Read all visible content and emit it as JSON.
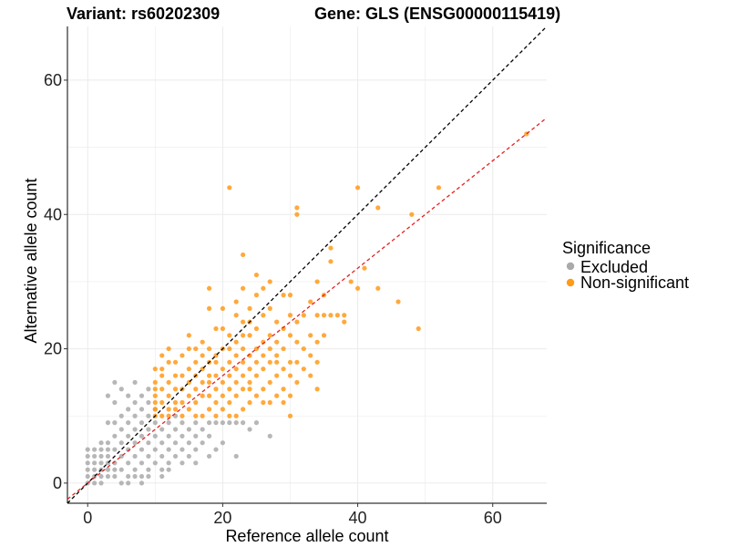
{
  "chart_data": {
    "type": "scatter",
    "title_left": "Variant: rs60202309",
    "title_right": "Gene: GLS (ENSG00000115419)",
    "xlabel": "Reference allele count",
    "ylabel": "Alternative allele count",
    "xlim": [
      -3,
      68
    ],
    "ylim": [
      -3,
      68
    ],
    "xticks": [
      0,
      20,
      40,
      60
    ],
    "yticks": [
      0,
      20,
      40,
      60
    ],
    "grid": true,
    "legend": {
      "title": "Significance",
      "position": "right",
      "entries": [
        {
          "label": "Excluded",
          "color": "#aaaaaa"
        },
        {
          "label": "Non-significant",
          "color": "#ff9a1a"
        }
      ]
    },
    "reference_lines": [
      {
        "name": "identity",
        "slope": 1.0,
        "intercept": 0,
        "color": "#000000",
        "style": "dashed"
      },
      {
        "name": "fit",
        "slope": 0.8,
        "intercept": 0,
        "color": "#e32222",
        "style": "dashed"
      }
    ],
    "series": [
      {
        "name": "Excluded",
        "color": "#aaaaaa",
        "points": [
          [
            0,
            0
          ],
          [
            0,
            1
          ],
          [
            0,
            2
          ],
          [
            0,
            3
          ],
          [
            0,
            5
          ],
          [
            1,
            0
          ],
          [
            1,
            1
          ],
          [
            1,
            2
          ],
          [
            1,
            4
          ],
          [
            1,
            5
          ],
          [
            2,
            0
          ],
          [
            2,
            1
          ],
          [
            2,
            2
          ],
          [
            2,
            3
          ],
          [
            2,
            5
          ],
          [
            2,
            6
          ],
          [
            3,
            1
          ],
          [
            3,
            2
          ],
          [
            3,
            3
          ],
          [
            3,
            4
          ],
          [
            3,
            6
          ],
          [
            3,
            9
          ],
          [
            3,
            13
          ],
          [
            4,
            1
          ],
          [
            4,
            3
          ],
          [
            4,
            5
          ],
          [
            4,
            7
          ],
          [
            4,
            9
          ],
          [
            4,
            12
          ],
          [
            4,
            15
          ],
          [
            5,
            2
          ],
          [
            5,
            4
          ],
          [
            5,
            6
          ],
          [
            5,
            8
          ],
          [
            5,
            10
          ],
          [
            5,
            14
          ],
          [
            6,
            1
          ],
          [
            6,
            3
          ],
          [
            6,
            5
          ],
          [
            6,
            7
          ],
          [
            6,
            9
          ],
          [
            6,
            11
          ],
          [
            6,
            13
          ],
          [
            7,
            2
          ],
          [
            7,
            4
          ],
          [
            7,
            6
          ],
          [
            7,
            8
          ],
          [
            7,
            10
          ],
          [
            7,
            12
          ],
          [
            7,
            15
          ],
          [
            8,
            1
          ],
          [
            8,
            3
          ],
          [
            8,
            5
          ],
          [
            8,
            7
          ],
          [
            8,
            9
          ],
          [
            8,
            11
          ],
          [
            8,
            13
          ],
          [
            9,
            2
          ],
          [
            9,
            4
          ],
          [
            9,
            6
          ],
          [
            9,
            8
          ],
          [
            9,
            10
          ],
          [
            9,
            12
          ],
          [
            9,
            14
          ],
          [
            10,
            3
          ],
          [
            10,
            5
          ],
          [
            10,
            7
          ],
          [
            10,
            9
          ],
          [
            10,
            11
          ],
          [
            11,
            4
          ],
          [
            11,
            6
          ],
          [
            11,
            8
          ],
          [
            11,
            2
          ],
          [
            12,
            5
          ],
          [
            12,
            7
          ],
          [
            12,
            9
          ],
          [
            12,
            3
          ],
          [
            13,
            4
          ],
          [
            13,
            6
          ],
          [
            13,
            8
          ],
          [
            14,
            3
          ],
          [
            14,
            5
          ],
          [
            14,
            7
          ],
          [
            14,
            9
          ],
          [
            15,
            6
          ],
          [
            15,
            8
          ],
          [
            16,
            5
          ],
          [
            16,
            7
          ],
          [
            16,
            9
          ],
          [
            17,
            6
          ],
          [
            17,
            8
          ],
          [
            18,
            9
          ],
          [
            18,
            7
          ],
          [
            19,
            9
          ],
          [
            20,
            9
          ],
          [
            21,
            9
          ],
          [
            22,
            4
          ],
          [
            22,
            9
          ],
          [
            23,
            9
          ],
          [
            24,
            8
          ],
          [
            25,
            9
          ],
          [
            27,
            7
          ],
          [
            19,
            5
          ],
          [
            16,
            3
          ],
          [
            12,
            2
          ],
          [
            11,
            1
          ],
          [
            15,
            4
          ],
          [
            18,
            4
          ],
          [
            20,
            6
          ],
          [
            13,
            10
          ],
          [
            0,
            4
          ],
          [
            1,
            3
          ],
          [
            2,
            4
          ],
          [
            3,
            5
          ],
          [
            4,
            2
          ],
          [
            5,
            0
          ],
          [
            6,
            0
          ],
          [
            7,
            1
          ],
          [
            8,
            0
          ],
          [
            9,
            1
          ]
        ]
      },
      {
        "name": "Non-significant",
        "color": "#ff9a1a",
        "points": [
          [
            10,
            10
          ],
          [
            10,
            11
          ],
          [
            10,
            12
          ],
          [
            10,
            13
          ],
          [
            10,
            14
          ],
          [
            10,
            15
          ],
          [
            10,
            17
          ],
          [
            11,
            10
          ],
          [
            11,
            12
          ],
          [
            11,
            14
          ],
          [
            11,
            16
          ],
          [
            11,
            19
          ],
          [
            12,
            10
          ],
          [
            12,
            11
          ],
          [
            12,
            13
          ],
          [
            12,
            15
          ],
          [
            12,
            18
          ],
          [
            12,
            20
          ],
          [
            13,
            11
          ],
          [
            13,
            12
          ],
          [
            13,
            14
          ],
          [
            13,
            16
          ],
          [
            14,
            10
          ],
          [
            14,
            12
          ],
          [
            14,
            14
          ],
          [
            14,
            16
          ],
          [
            14,
            19
          ],
          [
            15,
            11
          ],
          [
            15,
            13
          ],
          [
            15,
            15
          ],
          [
            15,
            17
          ],
          [
            15,
            20
          ],
          [
            16,
            10
          ],
          [
            16,
            12
          ],
          [
            16,
            14
          ],
          [
            16,
            16
          ],
          [
            16,
            18
          ],
          [
            17,
            10
          ],
          [
            17,
            13
          ],
          [
            17,
            15
          ],
          [
            17,
            17
          ],
          [
            17,
            21
          ],
          [
            18,
            11
          ],
          [
            18,
            13
          ],
          [
            18,
            15
          ],
          [
            18,
            18
          ],
          [
            18,
            20
          ],
          [
            18,
            29
          ],
          [
            18,
            26
          ],
          [
            19,
            10
          ],
          [
            19,
            12
          ],
          [
            19,
            14
          ],
          [
            19,
            16
          ],
          [
            19,
            19
          ],
          [
            19,
            23
          ],
          [
            20,
            11
          ],
          [
            20,
            13
          ],
          [
            20,
            15
          ],
          [
            20,
            17
          ],
          [
            20,
            20
          ],
          [
            20,
            26
          ],
          [
            21,
            10
          ],
          [
            21,
            12
          ],
          [
            21,
            14
          ],
          [
            21,
            16
          ],
          [
            21,
            18
          ],
          [
            21,
            22
          ],
          [
            21,
            44
          ],
          [
            22,
            10
          ],
          [
            22,
            13
          ],
          [
            22,
            15
          ],
          [
            22,
            17
          ],
          [
            22,
            19
          ],
          [
            22,
            21
          ],
          [
            22,
            25
          ],
          [
            23,
            11
          ],
          [
            23,
            14
          ],
          [
            23,
            16
          ],
          [
            23,
            18
          ],
          [
            23,
            20
          ],
          [
            23,
            24
          ],
          [
            23,
            29
          ],
          [
            23,
            34
          ],
          [
            24,
            12
          ],
          [
            24,
            15
          ],
          [
            24,
            17
          ],
          [
            24,
            19
          ],
          [
            24,
            22
          ],
          [
            24,
            26
          ],
          [
            25,
            13
          ],
          [
            25,
            16
          ],
          [
            25,
            18
          ],
          [
            25,
            20
          ],
          [
            25,
            23
          ],
          [
            25,
            28
          ],
          [
            26,
            12
          ],
          [
            26,
            14
          ],
          [
            26,
            17
          ],
          [
            26,
            19
          ],
          [
            26,
            21
          ],
          [
            26,
            25
          ],
          [
            27,
            12
          ],
          [
            27,
            15
          ],
          [
            27,
            18
          ],
          [
            27,
            20
          ],
          [
            27,
            22
          ],
          [
            27,
            26
          ],
          [
            27,
            30
          ],
          [
            28,
            13
          ],
          [
            28,
            16
          ],
          [
            28,
            19
          ],
          [
            28,
            21
          ],
          [
            28,
            24
          ],
          [
            29,
            12
          ],
          [
            29,
            14
          ],
          [
            29,
            17
          ],
          [
            29,
            20
          ],
          [
            29,
            23
          ],
          [
            29,
            28
          ],
          [
            30,
            10
          ],
          [
            30,
            13
          ],
          [
            30,
            16
          ],
          [
            30,
            18
          ],
          [
            30,
            22
          ],
          [
            30,
            25
          ],
          [
            30,
            28
          ],
          [
            31,
            15
          ],
          [
            31,
            18
          ],
          [
            31,
            21
          ],
          [
            31,
            24
          ],
          [
            31,
            40
          ],
          [
            31,
            41
          ],
          [
            32,
            17
          ],
          [
            32,
            20
          ],
          [
            32,
            25
          ],
          [
            33,
            16
          ],
          [
            33,
            19
          ],
          [
            33,
            22
          ],
          [
            33,
            27
          ],
          [
            34,
            14
          ],
          [
            34,
            18
          ],
          [
            34,
            21
          ],
          [
            34,
            25
          ],
          [
            34,
            30
          ],
          [
            35,
            22
          ],
          [
            35,
            25
          ],
          [
            35,
            28
          ],
          [
            36,
            33
          ],
          [
            36,
            35
          ],
          [
            36,
            25
          ],
          [
            37,
            25
          ],
          [
            38,
            24
          ],
          [
            38,
            25
          ],
          [
            39,
            30
          ],
          [
            40,
            29
          ],
          [
            40,
            44
          ],
          [
            41,
            32
          ],
          [
            43,
            29
          ],
          [
            43,
            41
          ],
          [
            46,
            27
          ],
          [
            48,
            40
          ],
          [
            49,
            23
          ],
          [
            52,
            44
          ],
          [
            65,
            52
          ],
          [
            28,
            18
          ],
          [
            26,
            29
          ],
          [
            25,
            31
          ],
          [
            24,
            14
          ],
          [
            22,
            27
          ],
          [
            20,
            23
          ],
          [
            17,
            19
          ],
          [
            15,
            22
          ],
          [
            13,
            18
          ],
          [
            11,
            17
          ],
          [
            16,
            20
          ],
          [
            18,
            16
          ],
          [
            19,
            18
          ],
          [
            21,
            20
          ],
          [
            23,
            22
          ],
          [
            24,
            24
          ]
        ]
      }
    ]
  }
}
